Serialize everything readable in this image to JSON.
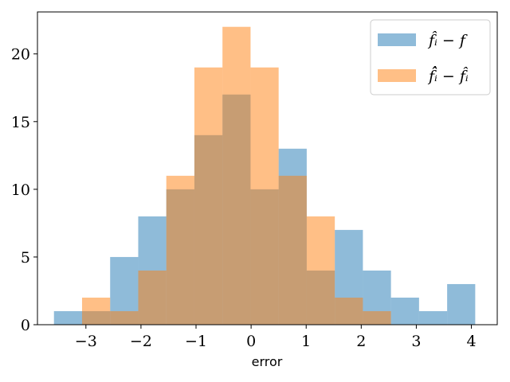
{
  "chart_data": {
    "type": "histogram",
    "title": "",
    "xlabel": "error",
    "ylabel": "",
    "xlim": [
      -3.88,
      4.47
    ],
    "ylim": [
      0,
      23.1
    ],
    "xticks": [
      {
        "value": -3,
        "label": "−3"
      },
      {
        "value": -2,
        "label": "−2"
      },
      {
        "value": -1,
        "label": "−1"
      },
      {
        "value": 0,
        "label": "0"
      },
      {
        "value": 1,
        "label": "1"
      },
      {
        "value": 2,
        "label": "2"
      },
      {
        "value": 3,
        "label": "3"
      },
      {
        "value": 4,
        "label": "4"
      }
    ],
    "yticks": [
      {
        "value": 0,
        "label": "0"
      },
      {
        "value": 5,
        "label": "5"
      },
      {
        "value": 10,
        "label": "10"
      },
      {
        "value": 15,
        "label": "15"
      },
      {
        "value": 20,
        "label": "20"
      }
    ],
    "bin_edges": [
      -3.58,
      -3.07,
      -2.56,
      -2.05,
      -1.54,
      -1.03,
      -0.52,
      -0.01,
      0.5,
      1.01,
      1.52,
      2.03,
      2.54,
      3.05,
      3.56,
      4.07
    ],
    "series": [
      {
        "name": "f̂ᵢ − f",
        "color": "#1f77b4",
        "opacity": 0.5,
        "counts": [
          1,
          1,
          5,
          8,
          10,
          14,
          17,
          10,
          13,
          4,
          7,
          4,
          2,
          1,
          3
        ]
      },
      {
        "name": "f̂̂ᵢ − f̂ᵢ",
        "color": "#ff7f0e",
        "opacity": 0.5,
        "counts": [
          0,
          2,
          1,
          4,
          11,
          19,
          22,
          19,
          11,
          8,
          2,
          1,
          0,
          0,
          0
        ]
      }
    ],
    "legend_position": "upper-right",
    "grid": false
  }
}
